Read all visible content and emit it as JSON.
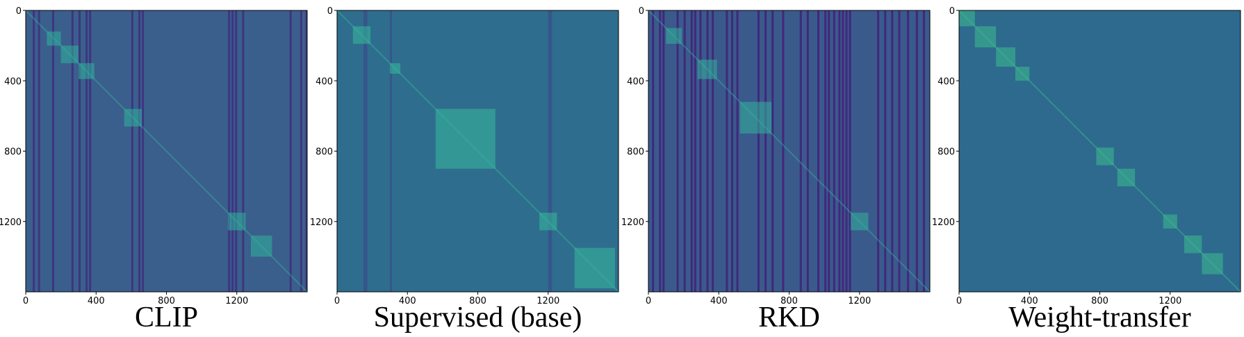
{
  "figure": {
    "description_labels": [
      "CLIP",
      "Supervised (base)",
      "RKD",
      "Weight-transfer"
    ]
  },
  "chart_data": [
    {
      "type": "heatmap",
      "title": "CLIP",
      "xlim": [
        0,
        1600
      ],
      "ylim": [
        1600,
        0
      ],
      "xticks": [
        0,
        400,
        800,
        1200
      ],
      "yticks": [
        0,
        400,
        800,
        1200
      ],
      "colormap": "viridis",
      "grid": false,
      "colors": {
        "base": "#3b5f8c",
        "dark": "#3e2f7f",
        "bright": "#2fb39a"
      },
      "blocks": [
        {
          "start": 120,
          "end": 200
        },
        {
          "start": 200,
          "end": 300
        },
        {
          "start": 300,
          "end": 390
        },
        {
          "start": 560,
          "end": 660
        },
        {
          "start": 1150,
          "end": 1250
        },
        {
          "start": 1280,
          "end": 1400
        }
      ],
      "dark_columns": [
        40,
        70,
        150,
        260,
        300,
        340,
        360,
        600,
        640,
        660,
        1150,
        1170,
        1190,
        1230,
        1500,
        1560,
        1590
      ]
    },
    {
      "type": "heatmap",
      "title": "Supervised (base)",
      "xlim": [
        0,
        1600
      ],
      "ylim": [
        1600,
        0
      ],
      "xticks": [
        0,
        400,
        800,
        1200
      ],
      "yticks": [
        0,
        400,
        800,
        1200
      ],
      "colormap": "viridis",
      "grid": false,
      "colors": {
        "base": "#2f6d8e",
        "dark": "#37528a",
        "bright": "#35b99b"
      },
      "blocks": [
        {
          "start": 90,
          "end": 190
        },
        {
          "start": 300,
          "end": 360
        },
        {
          "start": 560,
          "end": 900
        },
        {
          "start": 1150,
          "end": 1250
        },
        {
          "start": 1350,
          "end": 1580
        }
      ],
      "dark_columns": [
        150,
        160,
        300,
        1200,
        1210
      ]
    },
    {
      "type": "heatmap",
      "title": "RKD",
      "xlim": [
        0,
        1600
      ],
      "ylim": [
        1600,
        0
      ],
      "xticks": [
        0,
        400,
        800,
        1200
      ],
      "yticks": [
        0,
        400,
        800,
        1200
      ],
      "colormap": "viridis",
      "grid": false,
      "colors": {
        "base": "#3a5a8c",
        "dark": "#43207a",
        "bright": "#32b29a"
      },
      "blocks": [
        {
          "start": 100,
          "end": 190
        },
        {
          "start": 280,
          "end": 390
        },
        {
          "start": 520,
          "end": 700
        },
        {
          "start": 1150,
          "end": 1250
        }
      ],
      "dark_columns": [
        20,
        60,
        80,
        160,
        200,
        240,
        260,
        290,
        330,
        360,
        440,
        470,
        500,
        620,
        660,
        700,
        760,
        860,
        900,
        960,
        1000,
        1020,
        1050,
        1080,
        1100,
        1120,
        1140,
        1300,
        1340,
        1380,
        1420,
        1470,
        1520,
        1560
      ]
    },
    {
      "type": "heatmap",
      "title": "Weight-transfer",
      "xlim": [
        0,
        1600
      ],
      "ylim": [
        1600,
        0
      ],
      "xticks": [
        0,
        400,
        800,
        1200
      ],
      "yticks": [
        0,
        400,
        800,
        1200
      ],
      "colormap": "viridis",
      "grid": false,
      "colors": {
        "base": "#2e6a8e",
        "dark": "#30577f",
        "bright": "#3dbc8e"
      },
      "blocks": [
        {
          "start": 0,
          "end": 90
        },
        {
          "start": 90,
          "end": 210
        },
        {
          "start": 210,
          "end": 320
        },
        {
          "start": 320,
          "end": 400
        },
        {
          "start": 780,
          "end": 880
        },
        {
          "start": 900,
          "end": 1000
        },
        {
          "start": 1160,
          "end": 1240
        },
        {
          "start": 1280,
          "end": 1380
        },
        {
          "start": 1380,
          "end": 1500
        }
      ],
      "dark_columns": []
    }
  ]
}
